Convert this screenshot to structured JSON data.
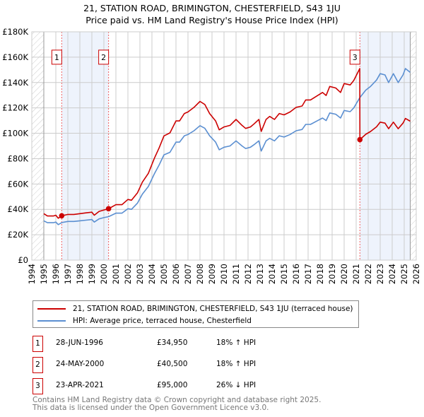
{
  "chart_data": {
    "type": "line",
    "title": "21, STATION ROAD, BRIMINGTON, CHESTERFIELD, S43 1JU",
    "subtitle": "Price paid vs. HM Land Registry's House Price Index (HPI)",
    "xlim": [
      1994,
      2026
    ],
    "ylim": [
      0,
      180000
    ],
    "x_ticks": [
      1994,
      1995,
      1996,
      1997,
      1998,
      1999,
      2000,
      2001,
      2002,
      2003,
      2004,
      2005,
      2006,
      2007,
      2008,
      2009,
      2010,
      2011,
      2012,
      2013,
      2014,
      2015,
      2016,
      2017,
      2018,
      2019,
      2020,
      2021,
      2022,
      2023,
      2024,
      2025,
      2026
    ],
    "y_ticks": [
      {
        "v": 0,
        "label": "£0"
      },
      {
        "v": 20000,
        "label": "£20K"
      },
      {
        "v": 40000,
        "label": "£40K"
      },
      {
        "v": 60000,
        "label": "£60K"
      },
      {
        "v": 80000,
        "label": "£80K"
      },
      {
        "v": 100000,
        "label": "£100K"
      },
      {
        "v": 120000,
        "label": "£120K"
      },
      {
        "v": 140000,
        "label": "£140K"
      },
      {
        "v": 160000,
        "label": "£160K"
      },
      {
        "v": 180000,
        "label": "£180K"
      }
    ],
    "grid": true,
    "hatched_ranges": [
      [
        1994,
        1995
      ],
      [
        2025.5,
        2026
      ]
    ],
    "shaded_ranges": [
      [
        1996.49,
        2000.39
      ],
      [
        2021.31,
        2025.5
      ]
    ],
    "series": [
      {
        "name": "21, STATION ROAD, BRIMINGTON, CHESTERFIELD, S43 1JU (terraced house)",
        "color": "#cc0000",
        "x": [
          1995,
          1995.3,
          1995.8,
          1996,
          1996.2,
          1996.5,
          1997,
          1997.5,
          1998,
          1998.5,
          1999,
          1999.2,
          1999.6,
          2000,
          2000.4,
          2001,
          2001.5,
          2002,
          2002.3,
          2002.8,
          2003.2,
          2003.7,
          2004.2,
          2004.6,
          2005,
          2005.5,
          2006,
          2006.3,
          2006.7,
          2007,
          2007.5,
          2008,
          2008.4,
          2008.8,
          2009.3,
          2009.6,
          2010,
          2010.5,
          2011,
          2011.5,
          2011.8,
          2012.2,
          2012.5,
          2012.9,
          2013.1,
          2013.5,
          2013.8,
          2014.2,
          2014.6,
          2015,
          2015.5,
          2016,
          2016.5,
          2016.8,
          2017.2,
          2017.8,
          2018.2,
          2018.5,
          2018.8,
          2019.3,
          2019.7,
          2020,
          2020.5,
          2020.8,
          2021.3,
          2021.31,
          2021.8,
          2022.2,
          2022.7,
          2023,
          2023.4,
          2023.7,
          2024.1,
          2024.5,
          2024.9,
          2025.1,
          2025.5
        ],
        "y": [
          36600,
          34800,
          34800,
          35400,
          33000,
          34950,
          36000,
          36000,
          36600,
          37200,
          37800,
          35400,
          38400,
          39500,
          40500,
          43700,
          43700,
          47800,
          47200,
          53100,
          61400,
          68400,
          80200,
          88500,
          97900,
          100300,
          109700,
          109700,
          115600,
          116800,
          120400,
          125100,
          122700,
          115600,
          109700,
          102700,
          105000,
          106200,
          110900,
          106200,
          103800,
          105000,
          107400,
          110900,
          101500,
          110900,
          113300,
          110900,
          115600,
          114500,
          116800,
          120400,
          121500,
          126300,
          126300,
          129800,
          132200,
          129800,
          136900,
          135700,
          132200,
          139200,
          138100,
          141600,
          151000,
          95000,
          99200,
          101400,
          105100,
          108800,
          108000,
          103600,
          108800,
          103600,
          108000,
          111700,
          109500
        ]
      },
      {
        "name": "HPI: Average price, terraced house, Chesterfield",
        "color": "#5b8fd1",
        "x": [
          1995,
          1995.3,
          1995.8,
          1996,
          1996.2,
          1996.5,
          1997,
          1997.5,
          1998,
          1998.5,
          1999,
          1999.2,
          1999.6,
          2000,
          2000.4,
          2001,
          2001.5,
          2002,
          2002.3,
          2002.8,
          2003.2,
          2003.7,
          2004.2,
          2004.6,
          2005,
          2005.5,
          2006,
          2006.3,
          2006.7,
          2007,
          2007.5,
          2008,
          2008.4,
          2008.8,
          2009.3,
          2009.6,
          2010,
          2010.5,
          2011,
          2011.5,
          2011.8,
          2012.2,
          2012.5,
          2012.9,
          2013.1,
          2013.5,
          2013.8,
          2014.2,
          2014.6,
          2015,
          2015.5,
          2016,
          2016.5,
          2016.8,
          2017.2,
          2017.8,
          2018.2,
          2018.5,
          2018.8,
          2019.3,
          2019.7,
          2020,
          2020.5,
          2020.8,
          2021.3,
          2021.8,
          2022.2,
          2022.7,
          2023,
          2023.4,
          2023.7,
          2024.1,
          2024.5,
          2024.9,
          2025.1,
          2025.5
        ],
        "y": [
          31000,
          29500,
          29500,
          30000,
          28000,
          29600,
          30500,
          30500,
          31000,
          31500,
          32000,
          30000,
          32500,
          33500,
          34300,
          37000,
          37000,
          40500,
          40000,
          45000,
          52000,
          58000,
          68000,
          75000,
          83000,
          85000,
          93000,
          93000,
          98000,
          99000,
          102000,
          106000,
          104000,
          98000,
          93000,
          87000,
          89000,
          90000,
          94000,
          90000,
          88000,
          89000,
          91000,
          94000,
          86000,
          94000,
          96000,
          94000,
          98000,
          97000,
          99000,
          102000,
          103000,
          107000,
          107000,
          110000,
          112000,
          110000,
          116000,
          115000,
          112000,
          118000,
          117000,
          120000,
          128000,
          134000,
          137000,
          142000,
          147000,
          146000,
          140000,
          147000,
          140000,
          146000,
          151000,
          148000
        ]
      }
    ],
    "sales": [
      {
        "label": "1",
        "x": 1996.49,
        "y": 34950
      },
      {
        "label": "2",
        "x": 2000.39,
        "y": 40500
      },
      {
        "label": "3",
        "x": 2021.31,
        "y": 95000
      }
    ],
    "marker_label_value": 160000
  },
  "legend": {
    "items": [
      "21, STATION ROAD, BRIMINGTON, CHESTERFIELD, S43 1JU (terraced house)",
      "HPI: Average price, terraced house, Chesterfield"
    ]
  },
  "table": [
    {
      "num": "1",
      "date": "28-JUN-1996",
      "price": "£34,950",
      "hpi": "18% ↑ HPI"
    },
    {
      "num": "2",
      "date": "24-MAY-2000",
      "price": "£40,500",
      "hpi": "18% ↑ HPI"
    },
    {
      "num": "3",
      "date": "23-APR-2021",
      "price": "£95,000",
      "hpi": "26% ↓ HPI"
    }
  ],
  "footer": [
    "Contains HM Land Registry data © Crown copyright and database right 2025.",
    "This data is licensed under the Open Government Licence v3.0."
  ]
}
